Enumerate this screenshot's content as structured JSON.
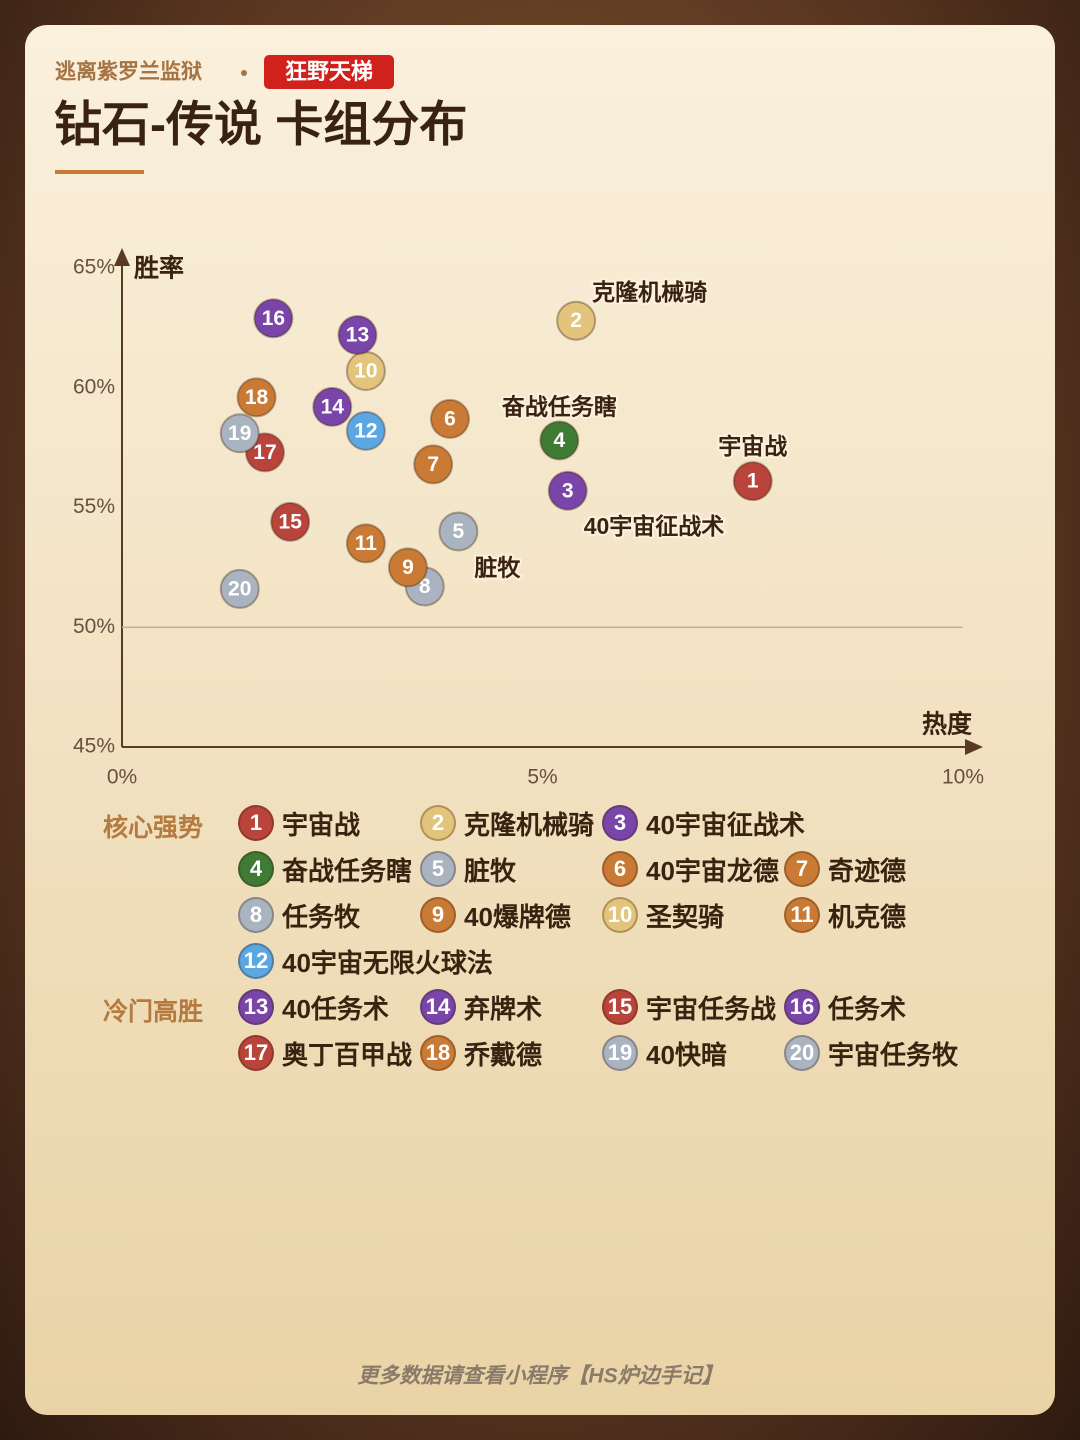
{
  "header": {
    "subtitle": "逃离紫罗兰监狱",
    "tag": "狂野天梯",
    "title": "钻石-传说 卡组分布"
  },
  "chart_data": {
    "type": "scatter",
    "y_label": "胜率",
    "x_label": "热度",
    "xlim": [
      0,
      10
    ],
    "xticks": [
      {
        "value": 0,
        "label": "0%"
      },
      {
        "value": 5,
        "label": "5%"
      },
      {
        "value": 10,
        "label": "10%"
      }
    ],
    "ylim": [
      45,
      65
    ],
    "yticks": [
      {
        "value": 45,
        "label": "45%"
      },
      {
        "value": 50,
        "label": "50%"
      },
      {
        "value": 55,
        "label": "55%"
      },
      {
        "value": 60,
        "label": "60%"
      },
      {
        "value": 65,
        "label": "65%"
      }
    ],
    "reference_line": 50,
    "point_labels": [
      2,
      4,
      1,
      3,
      5
    ],
    "series": [
      {
        "name": "核心强势",
        "ids": [
          1,
          2,
          3,
          4,
          5,
          6,
          7,
          8,
          9,
          10,
          11,
          12
        ],
        "names": [
          "宇宙战",
          "克隆机械骑",
          "40宇宙征战术",
          "奋战任务瞎",
          "脏牧",
          "40宇宙龙德",
          "奇迹德",
          "任务牧",
          "40爆牌德",
          "圣契骑",
          "机克德",
          "40宇宙无限火球法"
        ],
        "colors": [
          "#b9443c",
          "#e2c47c",
          "#7a45a8",
          "#3f7b35",
          "#aab4c1",
          "#c97b36",
          "#c97b36",
          "#aab4c1",
          "#c97b36",
          "#e2c47c",
          "#c97b36",
          "#5ba7e2"
        ],
        "x": [
          7.5,
          5.4,
          5.3,
          5.2,
          4.0,
          3.9,
          3.7,
          3.6,
          3.4,
          2.9,
          2.9,
          2.9
        ],
        "values": [
          56.1,
          62.8,
          55.7,
          57.8,
          54.0,
          58.7,
          56.8,
          51.7,
          52.5,
          60.7,
          53.5,
          58.2
        ]
      },
      {
        "name": "冷门高胜",
        "ids": [
          13,
          14,
          15,
          16,
          17,
          18,
          19,
          20
        ],
        "names": [
          "40任务术",
          "弃牌术",
          "宇宙任务战",
          "任务术",
          "奥丁百甲战",
          "乔戴德",
          "40快暗",
          "宇宙任务牧"
        ],
        "colors": [
          "#7a45a8",
          "#7a45a8",
          "#b9443c",
          "#7a45a8",
          "#b9443c",
          "#c97b36",
          "#aab4c1",
          "#aab4c1"
        ],
        "x": [
          2.8,
          2.5,
          2.0,
          1.8,
          1.7,
          1.6,
          1.4,
          1.4
        ],
        "values": [
          62.2,
          59.2,
          54.4,
          62.9,
          57.3,
          59.6,
          58.1,
          51.6
        ]
      }
    ]
  },
  "footer": "更多数据请查看小程序【HS炉边手记】"
}
